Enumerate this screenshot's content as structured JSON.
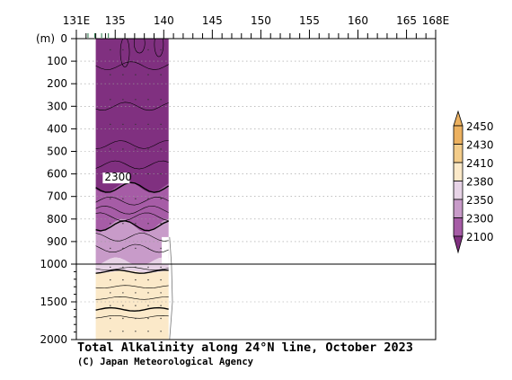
{
  "chart_data": {
    "type": "heatmap",
    "title": "Total Alkalinity along 24°N line, October 2023",
    "credit": "(C) Japan Meteorological Agency",
    "x_axis": {
      "tick_labels": [
        "131E",
        "135",
        "140",
        "145",
        "150",
        "155",
        "160",
        "165",
        "168E"
      ],
      "tick_values": [
        131,
        135,
        140,
        145,
        150,
        155,
        160,
        165,
        168
      ],
      "range": [
        131,
        168
      ]
    },
    "y_axis": {
      "unit_label": "(m)",
      "tick_labels": [
        "0",
        "100",
        "200",
        "300",
        "400",
        "500",
        "600",
        "700",
        "800",
        "900",
        "1000",
        "1500",
        "2000"
      ],
      "tick_values": [
        0,
        100,
        200,
        300,
        400,
        500,
        600,
        700,
        800,
        900,
        1000,
        1500,
        2000
      ],
      "range": [
        0,
        2000
      ],
      "scale": "piecewise linear (0-1000 m and 1000-2000 m)"
    },
    "contour_levels": [
      2100,
      2300,
      2350,
      2380,
      2410,
      2430,
      2450
    ],
    "colorbar": {
      "labels": [
        "2450",
        "2430",
        "2410",
        "2380",
        "2350",
        "2300",
        "2100"
      ],
      "colors": [
        "#ecb160",
        "#f3cc8a",
        "#fbe9c9",
        "#e7d3e6",
        "#c89bc9",
        "#a65ca6",
        "#803080"
      ]
    },
    "contour_label": "2300",
    "data_coverage_lon": [
      133,
      140.5
    ],
    "bands": [
      {
        "range": "2100-2300",
        "top_depth_m": 0,
        "bottom_depth_m": 660
      },
      {
        "range": "2300-2350",
        "top_depth_m": 660,
        "bottom_depth_m": 830
      },
      {
        "range": "2350-2380",
        "top_depth_m": 830,
        "bottom_depth_m": 990
      },
      {
        "range": "2380-2410",
        "top_depth_m": 990,
        "bottom_depth_m": 1100
      },
      {
        "range": "2410-2430",
        "top_depth_m": 1100,
        "bottom_depth_m": 2000
      }
    ],
    "grid": true
  }
}
